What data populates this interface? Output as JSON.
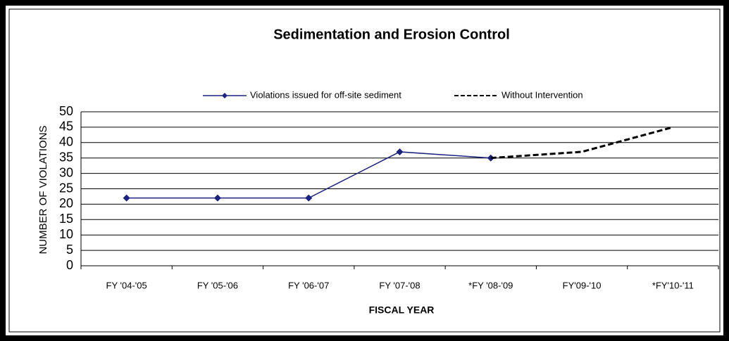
{
  "chart_data": {
    "type": "line",
    "title": "Sedimentation and Erosion Control",
    "x_label": "FISCAL YEAR",
    "y_label": "NUMBER OF VIOLATIONS",
    "categories": [
      "FY '04-'05",
      "FY '05-'06",
      "FY '06-'07",
      "FY '07-'08",
      "*FY '08-'09",
      "FY'09-'10",
      "*FY'10-'11"
    ],
    "series": [
      {
        "name": "Violations issued for off-site sediment",
        "color": "#1a237e",
        "values": [
          22,
          22,
          22,
          37,
          35,
          null,
          null
        ]
      },
      {
        "name": "Without Intervention",
        "color": "#000000",
        "values": [
          null,
          null,
          null,
          null,
          35,
          37,
          45
        ]
      }
    ],
    "ylim": [
      0,
      50
    ],
    "yticks": [
      0,
      5,
      10,
      15,
      20,
      25,
      30,
      35,
      40,
      45,
      50
    ],
    "grid": true
  }
}
